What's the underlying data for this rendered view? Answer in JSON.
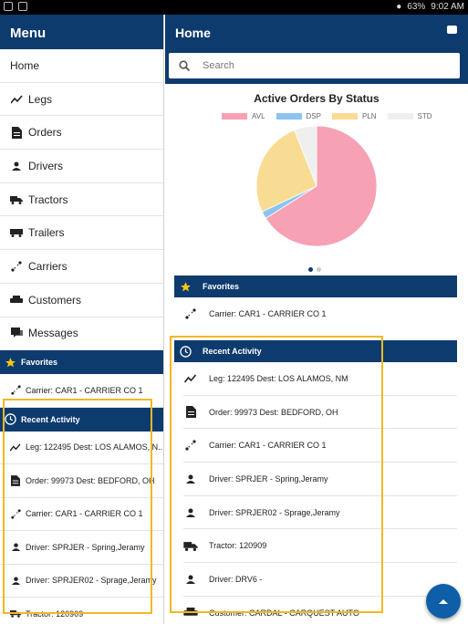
{
  "status_bar": {
    "battery": "63%",
    "time": "9:02 AM"
  },
  "menu": {
    "title": "Menu",
    "items": [
      {
        "label": "Home",
        "icon": "none"
      },
      {
        "label": "Legs",
        "icon": "trend-icon"
      },
      {
        "label": "Orders",
        "icon": "document-icon"
      },
      {
        "label": "Drivers",
        "icon": "person-icon"
      },
      {
        "label": "Tractors",
        "icon": "truck-icon"
      },
      {
        "label": "Trailers",
        "icon": "trailer-icon"
      },
      {
        "label": "Carriers",
        "icon": "route-icon"
      },
      {
        "label": "Customers",
        "icon": "car-icon"
      },
      {
        "label": "Messages",
        "icon": "chat-icon"
      }
    ],
    "favorites_title": "Favorites",
    "favorites": [
      {
        "label": "Carrier: CAR1 - CARRIER CO 1"
      }
    ],
    "recent_title": "Recent Activity",
    "recent": [
      {
        "label": "Leg: 122495 Dest: LOS ALAMOS, N..."
      },
      {
        "label": "Order: 99973 Dest: BEDFORD, OH"
      },
      {
        "label": "Carrier: CAR1 - CARRIER CO 1"
      },
      {
        "label": "Driver: SPRJER - Spring,Jeramy"
      },
      {
        "label": "Driver: SPRJER02 - Sprage,Jeramy"
      },
      {
        "label": "Tractor: 120909"
      }
    ]
  },
  "main": {
    "title": "Home",
    "search": {
      "placeholder": "Search",
      "value": ""
    },
    "favorites_title": "Favorites",
    "favorites": [
      {
        "label": "Carrier: CAR1 - CARRIER CO 1"
      }
    ],
    "recent_title": "Recent Activity",
    "recent": [
      {
        "label": "Leg: 122495 Dest: LOS ALAMOS, NM"
      },
      {
        "label": "Order: 99973 Dest: BEDFORD, OH"
      },
      {
        "label": "Carrier: CAR1 - CARRIER CO 1"
      },
      {
        "label": "Driver: SPRJER - Spring,Jeramy"
      },
      {
        "label": "Driver: SPRJER02 - Sprage,Jeramy"
      },
      {
        "label": "Tractor: 120909"
      },
      {
        "label": "Driver: DRV6 -"
      },
      {
        "label": "Customer: CARDAL - CARQUEST AUTO"
      }
    ]
  },
  "chart_data": {
    "type": "pie",
    "title": "Active Orders By Status",
    "legend_position": "top",
    "series": [
      {
        "name": "AVL",
        "value": 66,
        "color": "#f7a1b5"
      },
      {
        "name": "DSP",
        "value": 2,
        "color": "#8cc3ef"
      },
      {
        "name": "PLN",
        "value": 26,
        "color": "#f9dc93"
      },
      {
        "name": "STD",
        "value": 6,
        "color": "#efefef"
      }
    ]
  },
  "colors": {
    "navy": "#0e3b6e",
    "highlight": "#f2b824",
    "fab": "#0e5fa8"
  }
}
